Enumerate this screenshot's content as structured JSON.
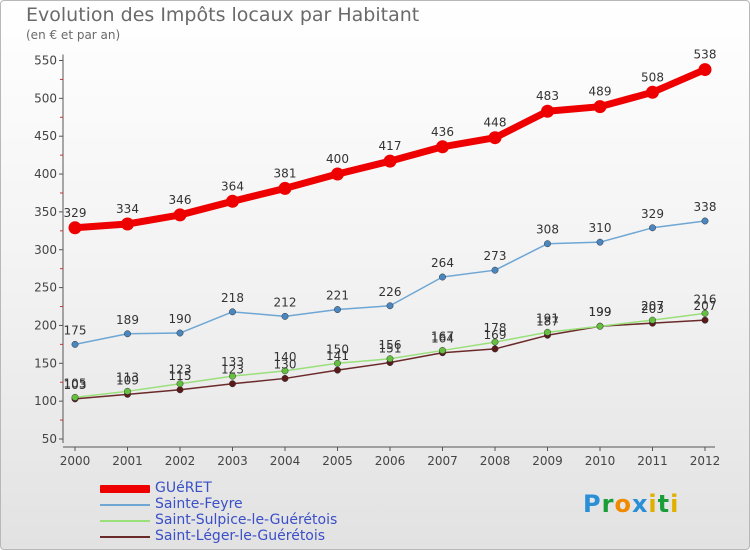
{
  "title": "Evolution des Impôts locaux par Habitant",
  "subtitle": "(en € et par an)",
  "chart_data": {
    "type": "line",
    "x": [
      "2000",
      "2001",
      "2002",
      "2003",
      "2004",
      "2005",
      "2006",
      "2007",
      "2008",
      "2009",
      "2010",
      "2011",
      "2012"
    ],
    "ylim": [
      50,
      550
    ],
    "yticks": [
      "50",
      "100",
      "150",
      "200",
      "250",
      "300",
      "350",
      "400",
      "450",
      "500",
      "550"
    ],
    "grid": false,
    "legend_position": "bottom-left",
    "series": [
      {
        "name": "GUéRET",
        "color": "#ee0000",
        "values": [
          329,
          334,
          346,
          364,
          381,
          400,
          417,
          436,
          448,
          483,
          489,
          508,
          538
        ]
      },
      {
        "name": "Sainte-Feyre",
        "color": "#6ea6d4",
        "values": [
          175,
          189,
          190,
          218,
          212,
          221,
          226,
          264,
          273,
          308,
          310,
          329,
          338
        ]
      },
      {
        "name": "Saint-Sulpice-le-Guérétois",
        "color": "#99e07a",
        "values": [
          105,
          113,
          123,
          133,
          140,
          150,
          156,
          167,
          178,
          191,
          199,
          207,
          216
        ]
      },
      {
        "name": "Saint-Léger-le-Guérétois",
        "color": "#6b2a2a",
        "values": [
          103,
          109,
          115,
          123,
          130,
          141,
          151,
          164,
          169,
          187,
          199,
          203,
          207
        ]
      }
    ]
  },
  "logo": {
    "letters": [
      "P",
      "r",
      "o",
      "x",
      "i",
      "t",
      "i"
    ],
    "colors": [
      "#2a8fd6",
      "#1a9e3a",
      "#f08a00",
      "#2a8fd6",
      "#e0b000",
      "#1a9e3a",
      "#e0b000"
    ]
  }
}
